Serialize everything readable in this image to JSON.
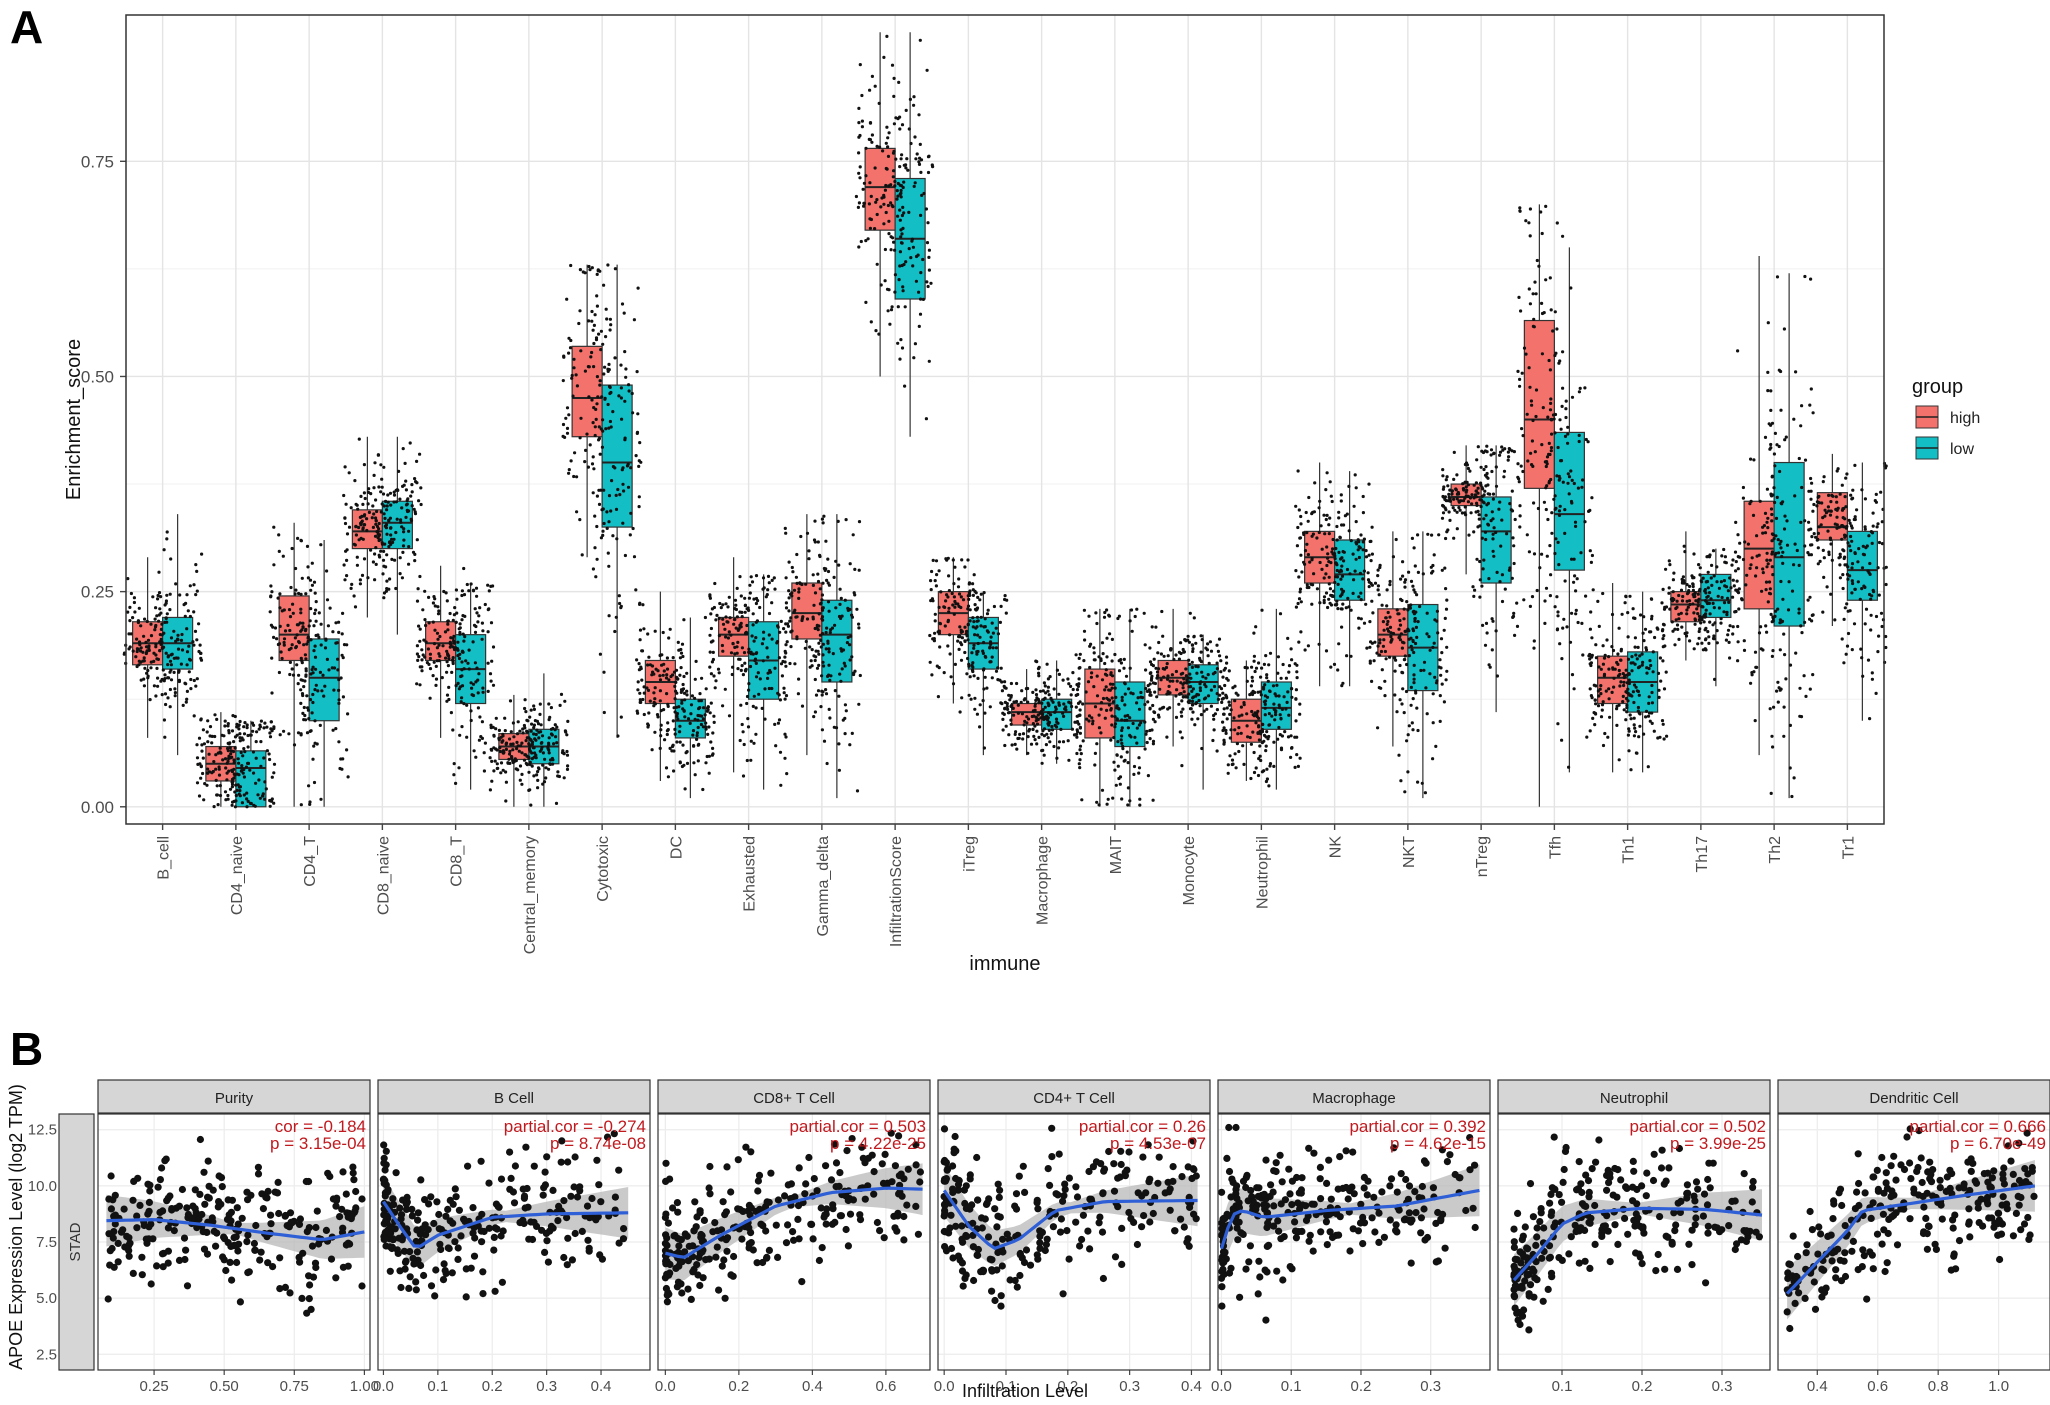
{
  "panels": {
    "a": "A",
    "b": "B"
  },
  "colors": {
    "high": "#f4726c",
    "low": "#13bfc4",
    "point": "#111111",
    "smooth": "#2f5fd6",
    "ci": "#b8b8b8",
    "strip": "#d6d6d6"
  },
  "chart_data": [
    {
      "type": "box",
      "xlabel": "immune",
      "ylabel": "Enrichment_score",
      "ylim": [
        -0.02,
        0.92
      ],
      "yticks": [
        "0.00",
        "0.25",
        "0.50",
        "0.75"
      ],
      "legend": {
        "title": "group",
        "placement": "right",
        "entries": [
          "high",
          "low"
        ]
      },
      "grid": true,
      "categories": [
        "B_cell",
        "CD4_naive",
        "CD4_T",
        "CD8_naive",
        "CD8_T",
        "Central_memory",
        "Cytotoxic",
        "DC",
        "Exhausted",
        "Gamma_delta",
        "InfiltrationScore",
        "iTreg",
        "Macrophage",
        "MAIT",
        "Monocyte",
        "Neutrophil",
        "NK",
        "NKT",
        "nTreg",
        "Tfh",
        "Th1",
        "Th17",
        "Th2",
        "Tr1"
      ],
      "series": [
        {
          "name": "high",
          "stats": [
            [
              0.08,
              0.165,
              0.19,
              0.215,
              0.29
            ],
            [
              0,
              0.03,
              0.05,
              0.07,
              0.11
            ],
            [
              0,
              0.17,
              0.2,
              0.245,
              0.33
            ],
            [
              0.22,
              0.3,
              0.32,
              0.345,
              0.43
            ],
            [
              0.08,
              0.17,
              0.19,
              0.215,
              0.28
            ],
            [
              0,
              0.055,
              0.07,
              0.085,
              0.13
            ],
            [
              0.29,
              0.43,
              0.475,
              0.535,
              0.63
            ],
            [
              0.03,
              0.12,
              0.145,
              0.17,
              0.25
            ],
            [
              0.04,
              0.175,
              0.2,
              0.22,
              0.29
            ],
            [
              0.06,
              0.195,
              0.225,
              0.26,
              0.34
            ],
            [
              0.5,
              0.67,
              0.72,
              0.765,
              0.9
            ],
            [
              0.12,
              0.2,
              0.225,
              0.25,
              0.29
            ],
            [
              0.06,
              0.095,
              0.11,
              0.12,
              0.16
            ],
            [
              0,
              0.08,
              0.12,
              0.16,
              0.23
            ],
            [
              0.07,
              0.13,
              0.15,
              0.17,
              0.23
            ],
            [
              0.03,
              0.075,
              0.1,
              0.125,
              0.17
            ],
            [
              0.14,
              0.26,
              0.29,
              0.32,
              0.4
            ],
            [
              0.07,
              0.175,
              0.2,
              0.23,
              0.32
            ],
            [
              0.27,
              0.35,
              0.36,
              0.375,
              0.42
            ],
            [
              0,
              0.37,
              0.45,
              0.565,
              0.7
            ],
            [
              0.04,
              0.12,
              0.15,
              0.175,
              0.26
            ],
            [
              0.17,
              0.215,
              0.235,
              0.25,
              0.32
            ],
            [
              0.06,
              0.23,
              0.3,
              0.355,
              0.64
            ],
            [
              0.21,
              0.31,
              0.325,
              0.365,
              0.41
            ]
          ]
        },
        {
          "name": "low",
          "stats": [
            [
              0.06,
              0.16,
              0.19,
              0.22,
              0.34
            ],
            [
              0,
              0,
              0.045,
              0.065,
              0.1
            ],
            [
              0,
              0.1,
              0.15,
              0.195,
              0.31
            ],
            [
              0.2,
              0.3,
              0.33,
              0.355,
              0.43
            ],
            [
              0.02,
              0.12,
              0.16,
              0.2,
              0.26
            ],
            [
              0,
              0.05,
              0.07,
              0.09,
              0.155
            ],
            [
              0.08,
              0.325,
              0.4,
              0.49,
              0.63
            ],
            [
              0.01,
              0.08,
              0.1,
              0.125,
              0.22
            ],
            [
              0.02,
              0.125,
              0.17,
              0.215,
              0.27
            ],
            [
              0.01,
              0.145,
              0.2,
              0.24,
              0.34
            ],
            [
              0.43,
              0.59,
              0.66,
              0.73,
              0.9
            ],
            [
              0.06,
              0.16,
              0.19,
              0.22,
              0.25
            ],
            [
              0.05,
              0.09,
              0.11,
              0.125,
              0.17
            ],
            [
              0,
              0.07,
              0.1,
              0.145,
              0.23
            ],
            [
              0.02,
              0.12,
              0.145,
              0.165,
              0.2
            ],
            [
              0.02,
              0.09,
              0.115,
              0.145,
              0.23
            ],
            [
              0.14,
              0.24,
              0.27,
              0.31,
              0.39
            ],
            [
              0.01,
              0.135,
              0.185,
              0.235,
              0.32
            ],
            [
              0.11,
              0.26,
              0.32,
              0.36,
              0.42
            ],
            [
              0.04,
              0.275,
              0.34,
              0.435,
              0.65
            ],
            [
              0.04,
              0.11,
              0.145,
              0.18,
              0.25
            ],
            [
              0.14,
              0.22,
              0.24,
              0.27,
              0.3
            ],
            [
              0.01,
              0.21,
              0.29,
              0.4,
              0.62
            ],
            [
              0.1,
              0.24,
              0.275,
              0.32,
              0.4
            ]
          ]
        }
      ]
    },
    {
      "type": "scatter",
      "xlabel": "Infiltration Level",
      "ylabel": "APOE Expression Level (log2 TPM)",
      "row_label": "STAD",
      "ylim": [
        1.8,
        13.2
      ],
      "yticks": [
        "2.5",
        "5.0",
        "7.5",
        "10.0",
        "12.5"
      ],
      "panels": [
        {
          "title": "Purity",
          "line1": "cor = -0.184",
          "line2": "p = 3.15e-04",
          "xlim": [
            0.05,
            1.02
          ],
          "xticks": [
            "0.25",
            "0.50",
            "0.75",
            "1.00"
          ],
          "xrange": [
            0.08,
            1.0
          ],
          "smooth": [
            [
              0.08,
              8.45
            ],
            [
              0.25,
              8.5
            ],
            [
              0.45,
              8.25
            ],
            [
              0.65,
              7.9
            ],
            [
              0.85,
              7.6
            ],
            [
              1.0,
              7.95
            ]
          ]
        },
        {
          "title": "B Cell",
          "line1": "partial.cor = -0.274",
          "line2": "p = 8.74e-08",
          "xlim": [
            -0.01,
            0.49
          ],
          "xticks": [
            "0.0",
            "0.1",
            "0.2",
            "0.3",
            "0.4"
          ],
          "xrange": [
            0.0,
            0.45
          ],
          "smooth": [
            [
              0.0,
              9.3
            ],
            [
              0.03,
              8.2
            ],
            [
              0.06,
              7.2
            ],
            [
              0.1,
              7.8
            ],
            [
              0.2,
              8.6
            ],
            [
              0.3,
              8.75
            ],
            [
              0.45,
              8.8
            ]
          ]
        },
        {
          "title": "CD8+ T Cell",
          "line1": "partial.cor = 0.503",
          "line2": "p = 4.22e-25",
          "xlim": [
            -0.02,
            0.72
          ],
          "xticks": [
            "0.0",
            "0.2",
            "0.4",
            "0.6"
          ],
          "xrange": [
            0.0,
            0.7
          ],
          "smooth": [
            [
              0.0,
              7.0
            ],
            [
              0.05,
              6.8
            ],
            [
              0.15,
              7.8
            ],
            [
              0.3,
              9.1
            ],
            [
              0.45,
              9.7
            ],
            [
              0.6,
              9.9
            ],
            [
              0.7,
              9.85
            ]
          ]
        },
        {
          "title": "CD4+ T Cell",
          "line1": "partial.cor = 0.26",
          "line2": "p = 4.53e-07",
          "xlim": [
            -0.01,
            0.43
          ],
          "xticks": [
            "0.0",
            "0.1",
            "0.2",
            "0.3",
            "0.4"
          ],
          "xrange": [
            0.0,
            0.41
          ],
          "smooth": [
            [
              0.0,
              9.8
            ],
            [
              0.04,
              8.2
            ],
            [
              0.08,
              7.2
            ],
            [
              0.12,
              7.6
            ],
            [
              0.18,
              8.9
            ],
            [
              0.26,
              9.3
            ],
            [
              0.41,
              9.35
            ]
          ]
        },
        {
          "title": "Macrophage",
          "line1": "partial.cor = 0.392",
          "line2": "p = 4.62e-15",
          "xlim": [
            -0.005,
            0.385
          ],
          "xticks": [
            "0.0",
            "0.1",
            "0.2",
            "0.3"
          ],
          "xrange": [
            0.0,
            0.37
          ],
          "smooth": [
            [
              0.0,
              7.2
            ],
            [
              0.015,
              8.7
            ],
            [
              0.03,
              8.9
            ],
            [
              0.06,
              8.6
            ],
            [
              0.15,
              8.9
            ],
            [
              0.25,
              9.1
            ],
            [
              0.37,
              9.8
            ]
          ]
        },
        {
          "title": "Neutrophil",
          "line1": "partial.cor = 0.502",
          "line2": "p = 3.99e-25",
          "xlim": [
            0.02,
            0.36
          ],
          "xticks": [
            "0.1",
            "0.2",
            "0.3"
          ],
          "xrange": [
            0.04,
            0.35
          ],
          "smooth": [
            [
              0.04,
              5.8
            ],
            [
              0.07,
              7.0
            ],
            [
              0.1,
              8.3
            ],
            [
              0.13,
              8.8
            ],
            [
              0.2,
              9.0
            ],
            [
              0.28,
              8.95
            ],
            [
              0.35,
              8.7
            ]
          ]
        },
        {
          "title": "Dendritic Cell",
          "line1": "partial.cor = 0.666",
          "line2": "p = 6.70e-49",
          "xlim": [
            0.27,
            1.17
          ],
          "xticks": [
            "0.4",
            "0.6",
            "0.8",
            "1.0"
          ],
          "xrange": [
            0.3,
            1.12
          ],
          "smooth": [
            [
              0.3,
              5.2
            ],
            [
              0.4,
              6.6
            ],
            [
              0.5,
              8.0
            ],
            [
              0.55,
              8.9
            ],
            [
              0.7,
              9.2
            ],
            [
              0.9,
              9.6
            ],
            [
              1.12,
              10.0
            ]
          ]
        }
      ]
    }
  ]
}
